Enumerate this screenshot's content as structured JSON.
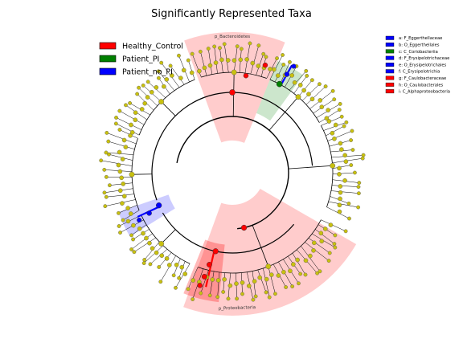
{
  "chart_data": {
    "type": "cladogram",
    "title": "Significantly Represented Taxa",
    "colors": {
      "Healthy_Control": "#ff0000",
      "Patient_PI": "#008000",
      "Patient_no_PI": "#0000ff",
      "node": "#c8c010"
    },
    "legend": {
      "placement": "top-left",
      "entries": [
        {
          "name": "Healthy_Control",
          "color": "#ff0000"
        },
        {
          "name": "Patient_PI",
          "color": "#008000"
        },
        {
          "name": "Patient_no_PI",
          "color": "#0000ff"
        }
      ]
    },
    "key": [
      {
        "label": "a: F_Eggerthellaceae",
        "group": "Patient_no_PI"
      },
      {
        "label": "b: O_Eggerthellales",
        "group": "Patient_no_PI"
      },
      {
        "label": "c: C_Coriobacteriia",
        "group": "Patient_PI"
      },
      {
        "label": "d: F_Erysipelotrichaceae",
        "group": "Patient_no_PI"
      },
      {
        "label": "e: O_Erysipelotrichales",
        "group": "Patient_no_PI"
      },
      {
        "label": "f: C_Erysipelotrichia",
        "group": "Patient_no_PI"
      },
      {
        "label": "g: F_Caulobacteraceae",
        "group": "Healthy_Control"
      },
      {
        "label": "h: O_Caulobacterales",
        "group": "Healthy_Control"
      },
      {
        "label": "i: C_Alphaproteobacteria",
        "group": "Healthy_Control"
      }
    ],
    "clades": [
      {
        "name": "p_Bacteroidetes",
        "group": "Healthy_Control",
        "level": "phylum"
      },
      {
        "name": "p_Proteobacteria",
        "group": "Healthy_Control",
        "level": "phylum"
      },
      {
        "name": "c",
        "group": "Patient_PI",
        "level": "class"
      },
      {
        "name": "f",
        "group": "Patient_no_PI",
        "level": "class"
      },
      {
        "name": "i",
        "group": "Healthy_Control",
        "level": "class"
      }
    ]
  }
}
